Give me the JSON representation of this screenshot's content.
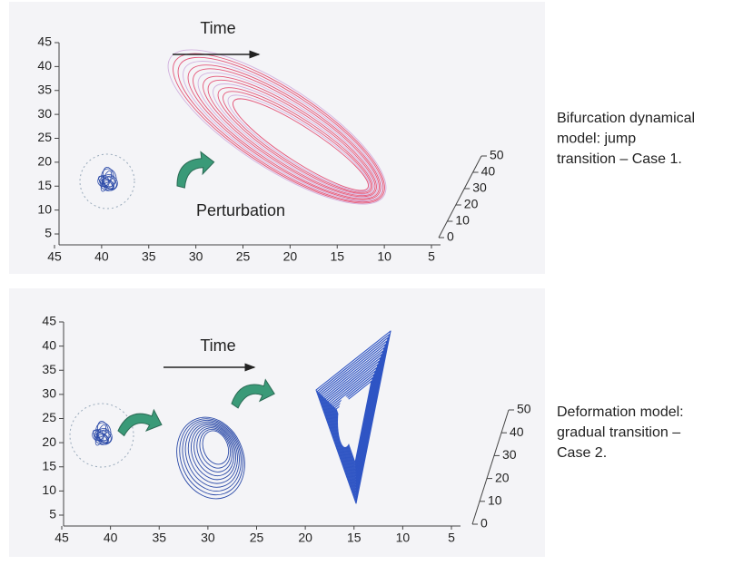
{
  "panels": [
    {
      "time_label": "Time",
      "annotation": "Perturbation",
      "left_ticks": [
        45,
        40,
        35,
        30,
        25,
        20,
        15,
        10,
        5
      ],
      "bottom_ticks": [
        45,
        40,
        35,
        30,
        25,
        20,
        15,
        10,
        5
      ],
      "depth_ticks": [
        50,
        40,
        30,
        20,
        10,
        0
      ],
      "caption": [
        "Bifurcation dynamical",
        "model: jump",
        "transition – Case 1."
      ]
    },
    {
      "time_label": "Time",
      "left_ticks": [
        45,
        40,
        35,
        30,
        25,
        20,
        15,
        10,
        5
      ],
      "bottom_ticks": [
        45,
        40,
        35,
        30,
        25,
        20,
        15,
        10,
        5
      ],
      "depth_ticks": [
        50,
        40,
        30,
        20,
        10,
        0
      ],
      "caption": [
        "Deformation model:",
        "gradual transition –",
        "Case 2."
      ]
    }
  ]
}
